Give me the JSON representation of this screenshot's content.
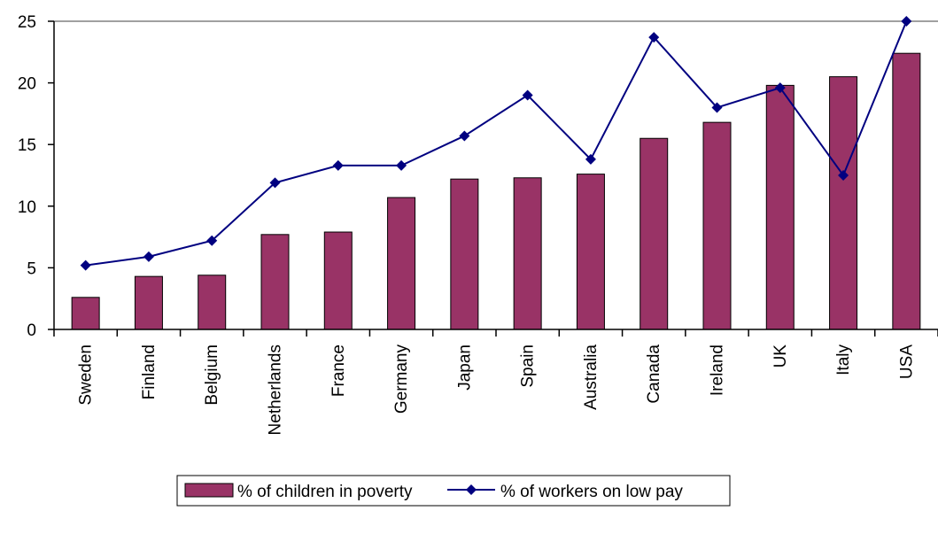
{
  "chart_data": {
    "type": "bar",
    "title": "",
    "xlabel": "",
    "ylabel": "",
    "categories": [
      "Sweden",
      "Finland",
      "Belgium",
      "Netherlands",
      "France",
      "Germany",
      "Japan",
      "Spain",
      "Australia",
      "Canada",
      "Ireland",
      "UK",
      "Italy",
      "USA"
    ],
    "ylim": [
      0,
      25
    ],
    "yticks": [
      0,
      5,
      10,
      15,
      20,
      25
    ],
    "grid": "top line only",
    "legend_position": "bottom",
    "series": [
      {
        "name": "% of children in poverty",
        "type": "bar",
        "color": "#993366",
        "values": [
          2.6,
          4.3,
          4.4,
          7.7,
          7.9,
          10.7,
          12.2,
          12.3,
          12.6,
          15.5,
          16.8,
          19.8,
          20.5,
          22.4
        ]
      },
      {
        "name": "% of workers on low pay",
        "type": "line",
        "marker": "diamond",
        "color": "#000080",
        "values": [
          5.2,
          5.9,
          7.2,
          11.9,
          13.3,
          13.3,
          15.7,
          19.0,
          13.8,
          23.7,
          18.0,
          19.6,
          12.5,
          25.0
        ]
      }
    ]
  }
}
